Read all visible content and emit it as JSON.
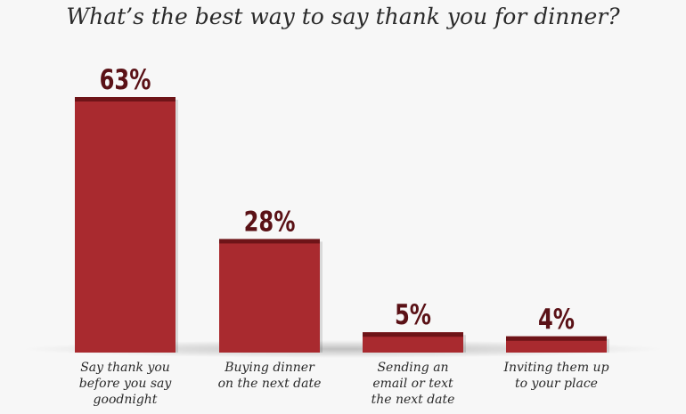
{
  "chart_data": {
    "type": "bar",
    "title": "What’s the best way to say thank you for dinner?",
    "categories": [
      [
        "Say thank you",
        "before you say",
        "goodnight"
      ],
      [
        "Buying dinner",
        "on the next date"
      ],
      [
        "Sending an",
        "email or text",
        "the next date"
      ],
      [
        "Inviting them up",
        "to your place"
      ]
    ],
    "values": [
      63,
      28,
      5,
      4
    ],
    "value_labels": [
      "63%",
      "28%",
      "5%",
      "4%"
    ],
    "ylim": [
      0,
      63
    ],
    "grid": false,
    "colors": {
      "bar": "#a92a2f",
      "bar_top": "#6e1418",
      "label": "#5a1116"
    }
  }
}
